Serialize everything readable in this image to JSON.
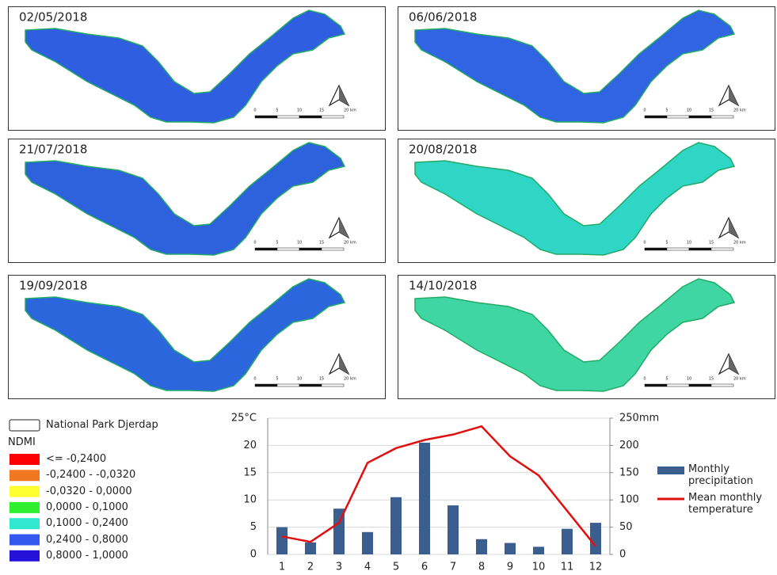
{
  "maps": [
    {
      "date": "02/05/2018",
      "color": "#2f5fe0"
    },
    {
      "date": "06/06/2018",
      "color": "#3164e2"
    },
    {
      "date": "21/07/2018",
      "color": "#2d62dc"
    },
    {
      "date": "20/08/2018",
      "color": "#2fd6c6"
    },
    {
      "date": "19/09/2018",
      "color": "#2c66dd"
    },
    {
      "date": "14/10/2018",
      "color": "#3fd6a4"
    }
  ],
  "scale_labels": [
    "0",
    "5",
    "10",
    "15",
    "20 km"
  ],
  "legend": {
    "boundary": "National Park Djerdap",
    "title": "NDMI",
    "classes": [
      {
        "label": "<= -0,2400",
        "color": "#ff0000"
      },
      {
        "label": "-0,2400 - -0,0320",
        "color": "#f07820"
      },
      {
        "label": "-0,0320 - 0,0000",
        "color": "#ffff30"
      },
      {
        "label": "0,0000 - 0,1000",
        "color": "#30ee30"
      },
      {
        "label": "0,1000 - 0,2400",
        "color": "#30e8d0"
      },
      {
        "label": "0,2400 - 0,8000",
        "color": "#3358ee"
      },
      {
        "label": "0,8000 - 1,0000",
        "color": "#2412d8"
      }
    ]
  },
  "chart_data": {
    "type": "bar",
    "categories": [
      "1",
      "2",
      "3",
      "4",
      "5",
      "6",
      "7",
      "8",
      "9",
      "10",
      "11",
      "12"
    ],
    "series": [
      {
        "name": "Monthly precipitation",
        "color": "#3a5f8f",
        "axis": "y2",
        "values": [
          50,
          22,
          84,
          41,
          105,
          205,
          90,
          28,
          21,
          14,
          47,
          58
        ]
      },
      {
        "name": "Mean monthly temperature",
        "type": "line",
        "color": "#e01010",
        "values": [
          3.3,
          2.3,
          5.8,
          16.8,
          19.5,
          21,
          22,
          23.5,
          18,
          14.5,
          8,
          1.5
        ]
      }
    ],
    "ylim": [
      0,
      25
    ],
    "yticks": [
      0,
      5,
      10,
      15,
      20,
      {
        "value": 25,
        "label": "25°C"
      }
    ],
    "y2lim": [
      0,
      250
    ],
    "y2ticks": [
      0,
      50,
      100,
      150,
      200,
      {
        "value": 250,
        "label": "250mm"
      }
    ],
    "grid": true
  }
}
